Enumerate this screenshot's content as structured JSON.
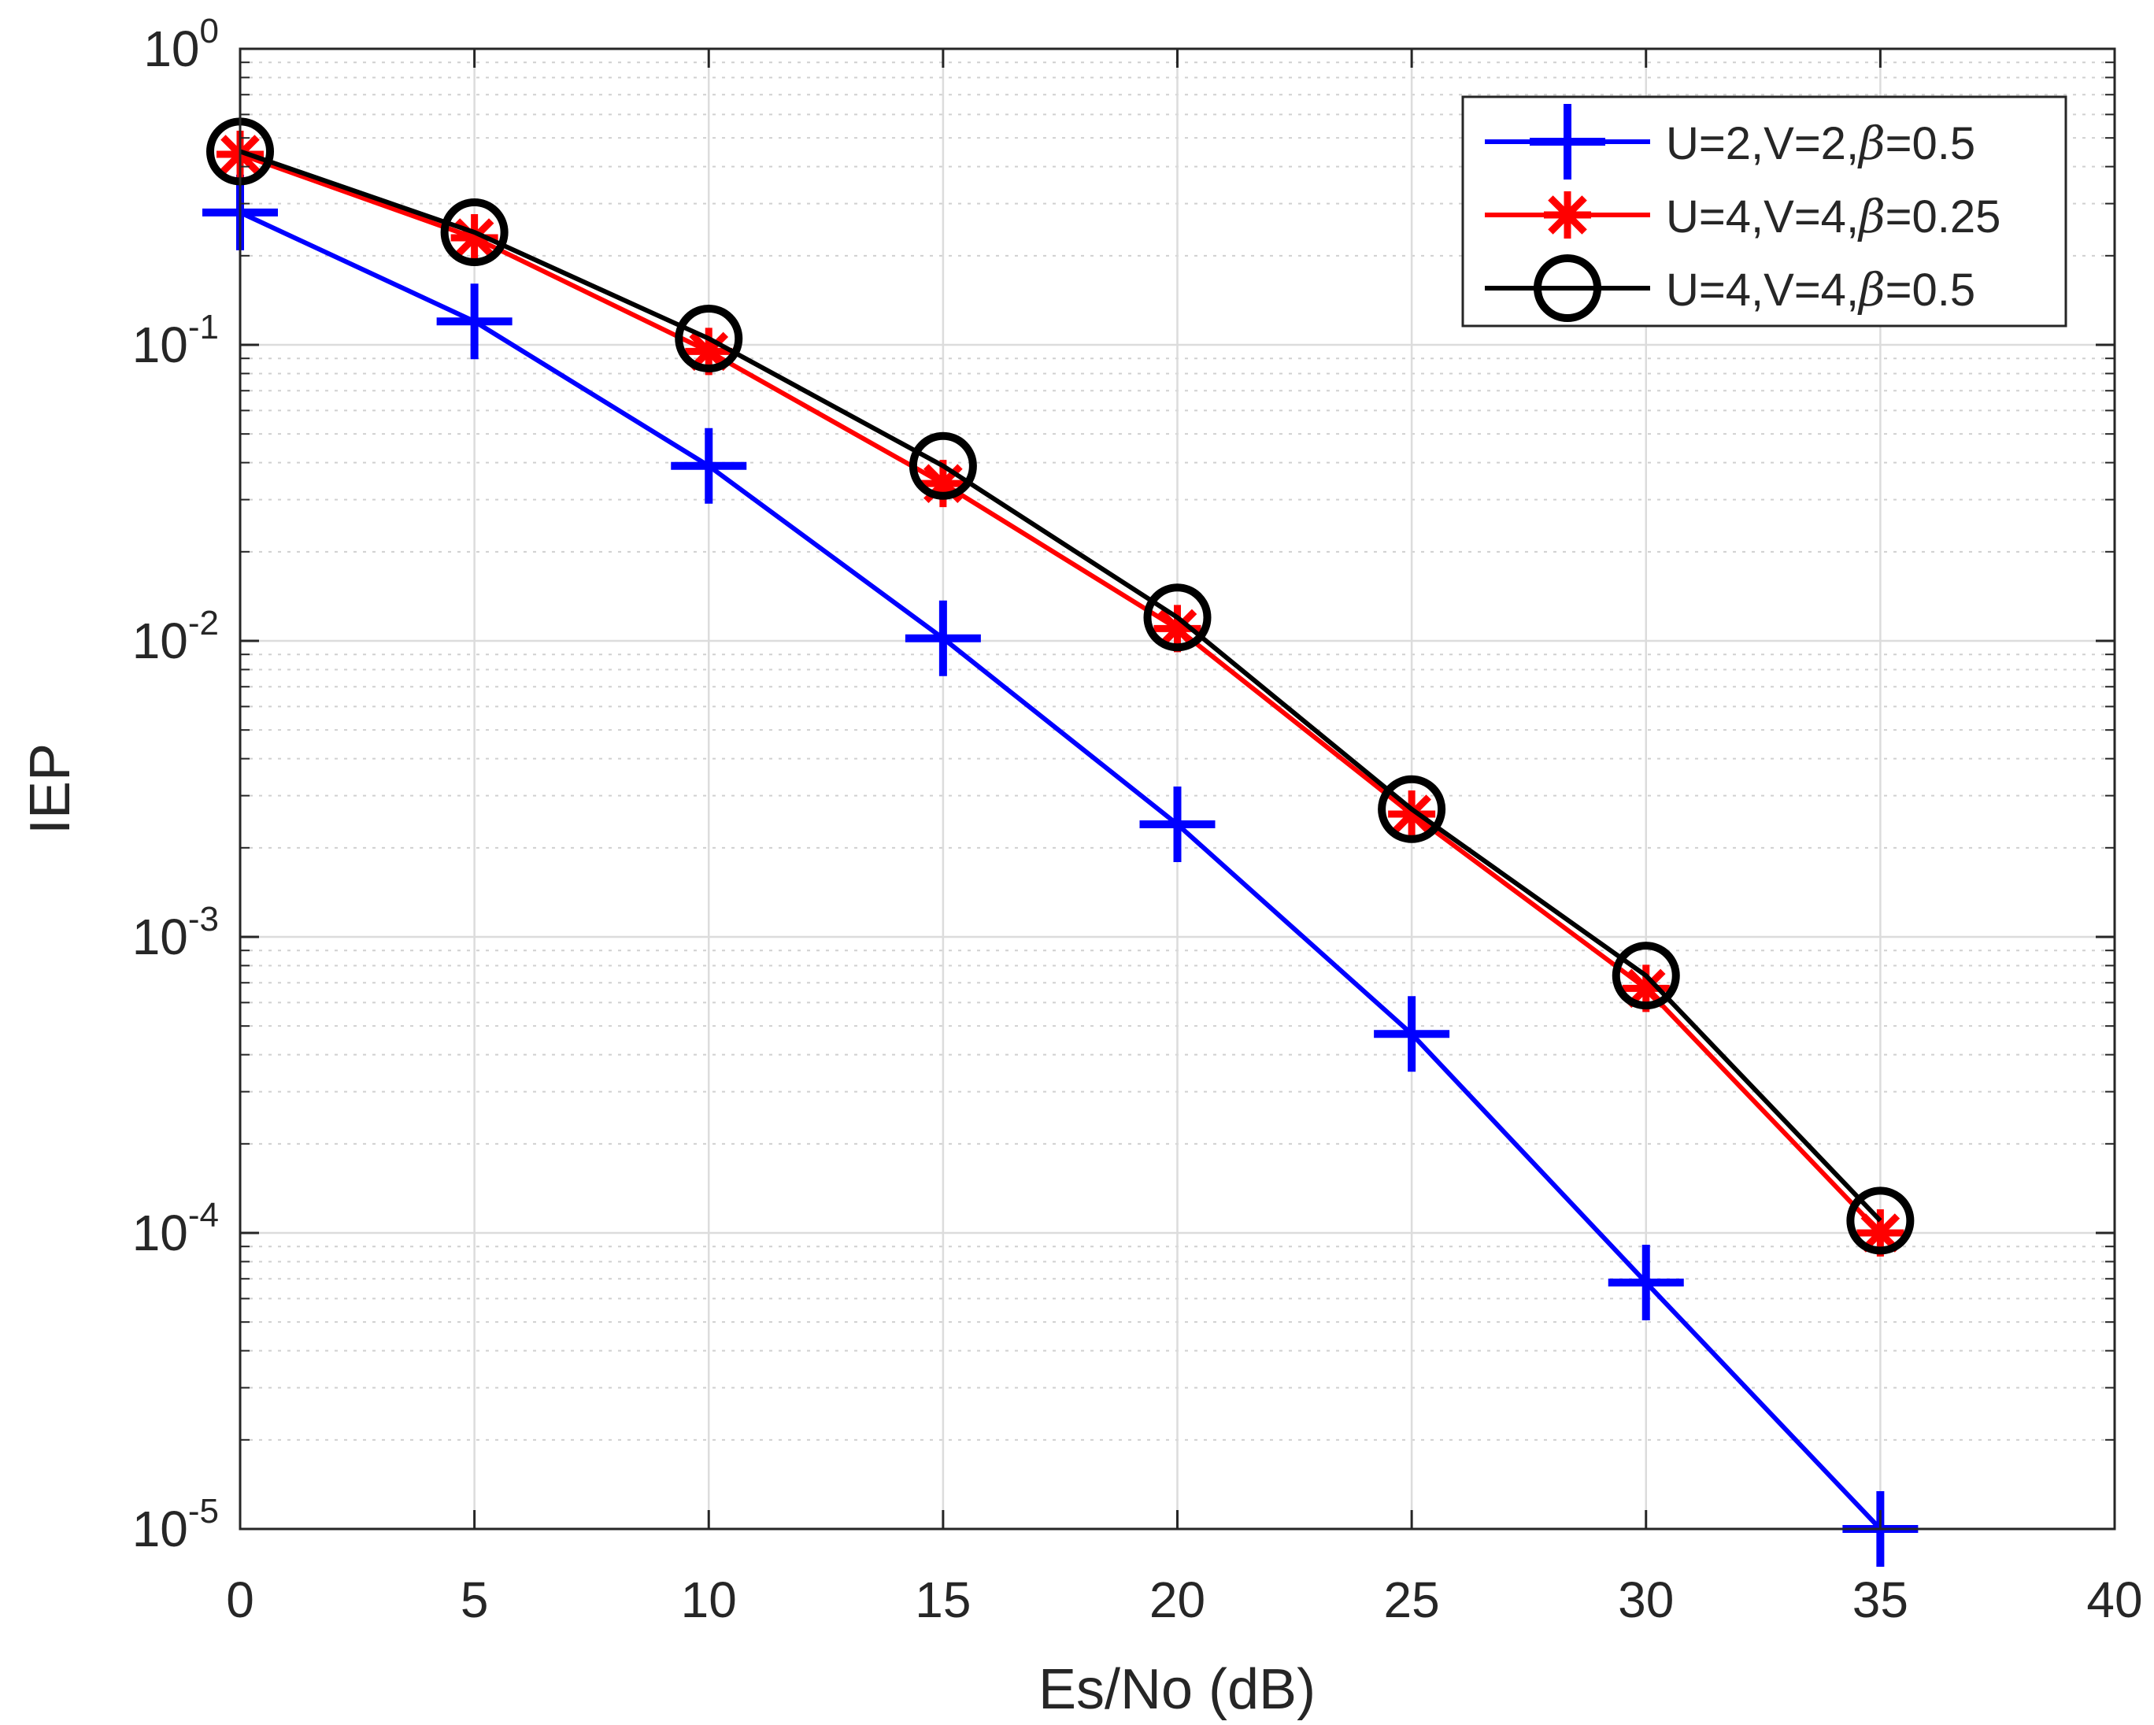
{
  "chart_data": {
    "type": "line",
    "xlabel": "Es/No (dB)",
    "ylabel": "IEP",
    "xscale": "linear",
    "yscale": "log",
    "xlim": [
      0,
      40
    ],
    "ylim": [
      1e-05,
      1
    ],
    "grid": true,
    "minor_grid": true,
    "legend_position": "top-right",
    "x_ticks": [
      0,
      5,
      10,
      15,
      20,
      25,
      30,
      35,
      40
    ],
    "x_tick_labels": [
      "0",
      "5",
      "10",
      "15",
      "20",
      "25",
      "30",
      "35",
      "40"
    ],
    "y_ticks": [
      1e-05,
      0.0001,
      0.001,
      0.01,
      0.1,
      1
    ],
    "y_tick_labels": [
      {
        "base": "10",
        "exp": "-5"
      },
      {
        "base": "10",
        "exp": "-4"
      },
      {
        "base": "10",
        "exp": "-3"
      },
      {
        "base": "10",
        "exp": "-2"
      },
      {
        "base": "10",
        "exp": "-1"
      },
      {
        "base": "10",
        "exp": "0"
      }
    ],
    "x": [
      0,
      5,
      10,
      15,
      20,
      25,
      30,
      35
    ],
    "series": [
      {
        "name": "U=2,V=2,β=0.5",
        "label_prefix": "U=2,V=2,",
        "label_symbol": "β",
        "label_suffix": "=0.5",
        "color": "#0000ff",
        "marker": "plus",
        "values": [
          0.28,
          0.12,
          0.039,
          0.0102,
          0.0024,
          0.00047,
          6.8e-05,
          1e-05
        ]
      },
      {
        "name": "U=4,V=4,β=0.25",
        "label_prefix": "U=4,V=4,",
        "label_symbol": "β",
        "label_suffix": "=0.25",
        "color": "#ff0000",
        "marker": "asterisk",
        "values": [
          0.44,
          0.23,
          0.095,
          0.034,
          0.011,
          0.0026,
          0.00067,
          0.0001
        ]
      },
      {
        "name": "U=4,V=4,β=0.5",
        "label_prefix": "U=4,V=4,",
        "label_symbol": "β",
        "label_suffix": "=0.5",
        "color": "#000000",
        "marker": "circle",
        "values": [
          0.45,
          0.24,
          0.105,
          0.039,
          0.012,
          0.0027,
          0.00074,
          0.00011
        ]
      }
    ]
  }
}
